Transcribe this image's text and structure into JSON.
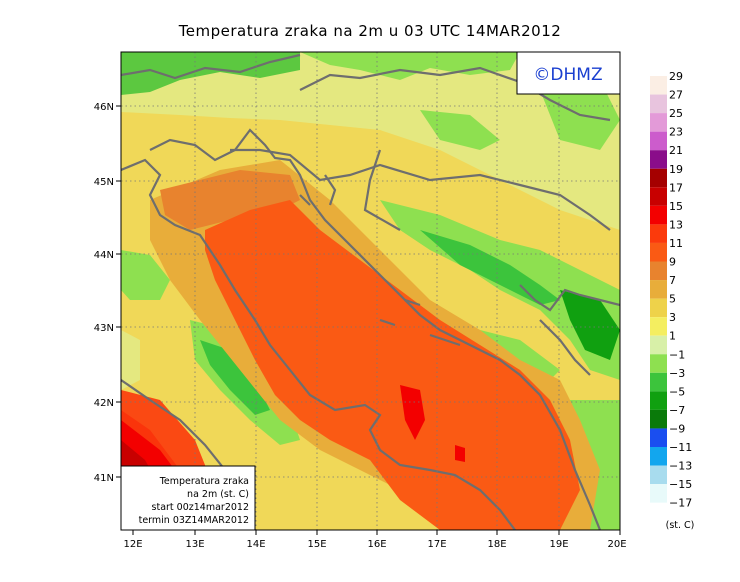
{
  "title": "Temperatura zraka na 2m u 03 UTC 14MAR2012",
  "copyright": "©DHMZ",
  "lat_labels": [
    "46N",
    "45N",
    "44N",
    "43N",
    "42N",
    "41N"
  ],
  "lon_labels": [
    "12E",
    "13E",
    "14E",
    "15E",
    "16E",
    "17E",
    "18E",
    "19E",
    "20E"
  ],
  "legend": {
    "unit_label": "(st. C)",
    "levels": [
      {
        "label": "29",
        "color": "#fbeee4"
      },
      {
        "label": "27",
        "color": "#e8c4de"
      },
      {
        "label": "25",
        "color": "#e39ad8"
      },
      {
        "label": "23",
        "color": "#cc5ccc"
      },
      {
        "label": "21",
        "color": "#8a0d8a"
      },
      {
        "label": "19",
        "color": "#a50000"
      },
      {
        "label": "17",
        "color": "#c80000"
      },
      {
        "label": "15",
        "color": "#f30000"
      },
      {
        "label": "13",
        "color": "#fb3a0c"
      },
      {
        "label": "11",
        "color": "#fa5a14"
      },
      {
        "label": "9",
        "color": "#e8832e"
      },
      {
        "label": "7",
        "color": "#e8ad3a"
      },
      {
        "label": "5",
        "color": "#eed24a"
      },
      {
        "label": "3",
        "color": "#f4ee60"
      },
      {
        "label": "1",
        "color": "#d8f0a8"
      },
      {
        "label": "−1",
        "color": "#8ee050"
      },
      {
        "label": "−3",
        "color": "#3cc43c"
      },
      {
        "label": "−5",
        "color": "#10a010"
      },
      {
        "label": "−7",
        "color": "#0a7a0a"
      },
      {
        "label": "−9",
        "color": "#1a4ef0"
      },
      {
        "label": "−11",
        "color": "#12a6ee"
      },
      {
        "label": "−13",
        "color": "#a8dcee"
      },
      {
        "label": "−15",
        "color": "#e8fafa"
      },
      {
        "label": "−17",
        "color": null
      }
    ]
  },
  "info_box": {
    "line1": "Temperatura zraka",
    "line2": "na 2m (st. C)",
    "line3": "start 00z14mar2012",
    "line4": "termin 03Z14MAR2012"
  }
}
